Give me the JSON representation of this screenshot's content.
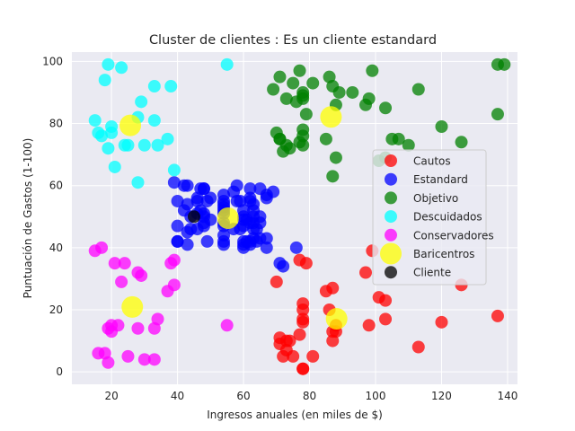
{
  "chart_data": {
    "type": "scatter",
    "title": "Cluster de clientes : Es un cliente  estandard",
    "xlabel": "Ingresos anuales (en miles de $)",
    "ylabel": "Puntuación de Gastos (1-100)",
    "xlim": [
      8,
      143
    ],
    "ylim": [
      -4,
      103
    ],
    "xticks": [
      20,
      40,
      60,
      80,
      100,
      120,
      140
    ],
    "yticks": [
      0,
      20,
      40,
      60,
      80,
      100
    ],
    "grid": true,
    "legend_position": "center-right",
    "series": [
      {
        "name": "Cautos",
        "color": "#ff0000",
        "points": [
          [
            70,
            29
          ],
          [
            71,
            11
          ],
          [
            71,
            9
          ],
          [
            72,
            5
          ],
          [
            73,
            7
          ],
          [
            73,
            10
          ],
          [
            74,
            10
          ],
          [
            75,
            5
          ],
          [
            77,
            12
          ],
          [
            77,
            36
          ],
          [
            78,
            1
          ],
          [
            78,
            1
          ],
          [
            78,
            22
          ],
          [
            78,
            17
          ],
          [
            78,
            16
          ],
          [
            78,
            20
          ],
          [
            79,
            35
          ],
          [
            81,
            5
          ],
          [
            85,
            26
          ],
          [
            86,
            20
          ],
          [
            87,
            27
          ],
          [
            87,
            13
          ],
          [
            87,
            10
          ],
          [
            88,
            13
          ],
          [
            88,
            15
          ],
          [
            97,
            32
          ],
          [
            98,
            15
          ],
          [
            99,
            39
          ],
          [
            101,
            24
          ],
          [
            103,
            17
          ],
          [
            103,
            23
          ],
          [
            113,
            8
          ],
          [
            120,
            16
          ],
          [
            126,
            28
          ],
          [
            137,
            18
          ]
        ]
      },
      {
        "name": "Estandard",
        "color": "#0000ff",
        "points": [
          [
            39,
            61
          ],
          [
            40,
            55
          ],
          [
            40,
            47
          ],
          [
            40,
            42
          ],
          [
            40,
            42
          ],
          [
            42,
            52
          ],
          [
            42,
            60
          ],
          [
            43,
            54
          ],
          [
            43,
            60
          ],
          [
            43,
            45
          ],
          [
            43,
            41
          ],
          [
            44,
            50
          ],
          [
            44,
            46
          ],
          [
            46,
            51
          ],
          [
            46,
            46
          ],
          [
            46,
            56
          ],
          [
            46,
            55
          ],
          [
            47,
            52
          ],
          [
            47,
            59
          ],
          [
            48,
            51
          ],
          [
            48,
            59
          ],
          [
            48,
            50
          ],
          [
            48,
            48
          ],
          [
            48,
            59
          ],
          [
            48,
            47
          ],
          [
            49,
            55
          ],
          [
            49,
            42
          ],
          [
            50,
            49
          ],
          [
            50,
            56
          ],
          [
            54,
            47
          ],
          [
            54,
            54
          ],
          [
            54,
            53
          ],
          [
            54,
            48
          ],
          [
            54,
            52
          ],
          [
            54,
            42
          ],
          [
            54,
            51
          ],
          [
            54,
            55
          ],
          [
            54,
            41
          ],
          [
            54,
            44
          ],
          [
            54,
            57
          ],
          [
            57,
            46
          ],
          [
            57,
            58
          ],
          [
            58,
            55
          ],
          [
            58,
            60
          ],
          [
            59,
            46
          ],
          [
            59,
            55
          ],
          [
            60,
            41
          ],
          [
            60,
            49
          ],
          [
            60,
            40
          ],
          [
            60,
            42
          ],
          [
            60,
            52
          ],
          [
            60,
            47
          ],
          [
            60,
            50
          ],
          [
            61,
            42
          ],
          [
            61,
            49
          ],
          [
            62,
            41
          ],
          [
            62,
            48
          ],
          [
            62,
            59
          ],
          [
            62,
            55
          ],
          [
            62,
            56
          ],
          [
            62,
            42
          ],
          [
            63,
            50
          ],
          [
            63,
            46
          ],
          [
            63,
            43
          ],
          [
            63,
            48
          ],
          [
            63,
            52
          ],
          [
            63,
            54
          ],
          [
            64,
            42
          ],
          [
            64,
            46
          ],
          [
            65,
            48
          ],
          [
            65,
            50
          ],
          [
            65,
            43
          ],
          [
            65,
            59
          ],
          [
            67,
            43
          ],
          [
            67,
            57
          ],
          [
            67,
            56
          ],
          [
            67,
            40
          ],
          [
            69,
            58
          ],
          [
            71,
            35
          ],
          [
            72,
            34
          ],
          [
            76,
            40
          ]
        ]
      },
      {
        "name": "Objetivo",
        "color": "#008000",
        "points": [
          [
            69,
            91
          ],
          [
            70,
            77
          ],
          [
            71,
            95
          ],
          [
            71,
            75
          ],
          [
            71,
            75
          ],
          [
            72,
            71
          ],
          [
            73,
            88
          ],
          [
            73,
            73
          ],
          [
            74,
            72
          ],
          [
            75,
            93
          ],
          [
            76,
            87
          ],
          [
            77,
            97
          ],
          [
            77,
            74
          ],
          [
            78,
            90
          ],
          [
            78,
            88
          ],
          [
            78,
            76
          ],
          [
            78,
            89
          ],
          [
            78,
            78
          ],
          [
            78,
            73
          ],
          [
            79,
            83
          ],
          [
            81,
            93
          ],
          [
            85,
            75
          ],
          [
            86,
            95
          ],
          [
            87,
            63
          ],
          [
            87,
            92
          ],
          [
            88,
            69
          ],
          [
            88,
            86
          ],
          [
            89,
            90
          ],
          [
            93,
            90
          ],
          [
            97,
            86
          ],
          [
            98,
            88
          ],
          [
            99,
            97
          ],
          [
            101,
            68
          ],
          [
            103,
            85
          ],
          [
            103,
            69
          ],
          [
            105,
            75
          ],
          [
            107,
            75
          ],
          [
            110,
            73
          ],
          [
            113,
            91
          ],
          [
            120,
            79
          ],
          [
            126,
            74
          ],
          [
            137,
            83
          ],
          [
            137,
            99
          ],
          [
            139,
            99
          ]
        ]
      },
      {
        "name": "Descuidados",
        "color": "#00ffff",
        "points": [
          [
            15,
            81
          ],
          [
            16,
            77
          ],
          [
            17,
            76
          ],
          [
            18,
            94
          ],
          [
            19,
            72
          ],
          [
            19,
            99
          ],
          [
            20,
            77
          ],
          [
            20,
            79
          ],
          [
            21,
            66
          ],
          [
            23,
            98
          ],
          [
            24,
            73
          ],
          [
            25,
            73
          ],
          [
            28,
            82
          ],
          [
            28,
            61
          ],
          [
            29,
            87
          ],
          [
            30,
            73
          ],
          [
            33,
            92
          ],
          [
            33,
            81
          ],
          [
            34,
            73
          ],
          [
            37,
            75
          ],
          [
            38,
            92
          ],
          [
            39,
            65
          ],
          [
            55,
            99
          ]
        ]
      },
      {
        "name": "Conservadores",
        "color": "#ff00ff",
        "points": [
          [
            15,
            39
          ],
          [
            16,
            6
          ],
          [
            17,
            40
          ],
          [
            18,
            6
          ],
          [
            19,
            3
          ],
          [
            19,
            14
          ],
          [
            20,
            15
          ],
          [
            20,
            13
          ],
          [
            21,
            35
          ],
          [
            22,
            15
          ],
          [
            23,
            29
          ],
          [
            24,
            35
          ],
          [
            25,
            5
          ],
          [
            28,
            14
          ],
          [
            28,
            32
          ],
          [
            29,
            31
          ],
          [
            30,
            4
          ],
          [
            33,
            4
          ],
          [
            33,
            14
          ],
          [
            34,
            17
          ],
          [
            37,
            26
          ],
          [
            38,
            35
          ],
          [
            39,
            36
          ],
          [
            39,
            28
          ],
          [
            55,
            15
          ]
        ]
      },
      {
        "name": "Baricentros",
        "color": "#ffff00",
        "size": "large",
        "points": [
          [
            26.3,
            20.9
          ],
          [
            55.3,
            49.5
          ],
          [
            86.5,
            82.1
          ],
          [
            25.7,
            79.4
          ],
          [
            88.2,
            17.1
          ]
        ]
      },
      {
        "name": "Cliente",
        "color": "#000000",
        "points": [
          [
            45,
            50
          ]
        ]
      }
    ]
  }
}
